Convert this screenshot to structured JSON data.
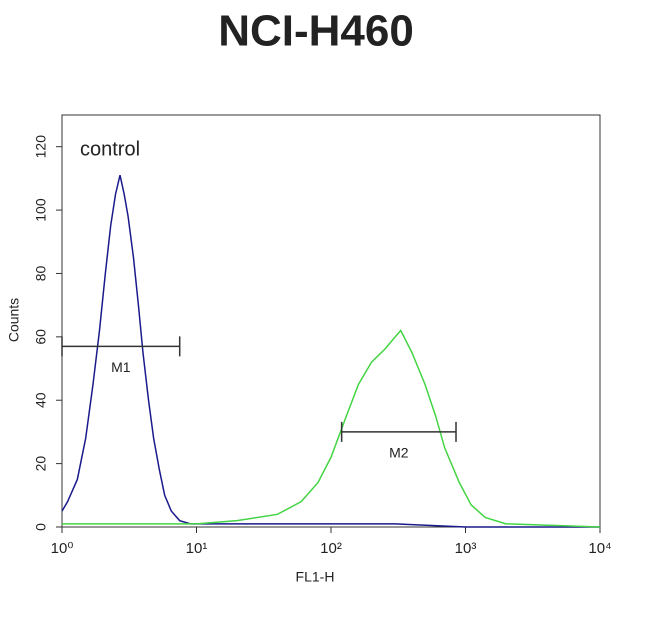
{
  "chart_data": {
    "type": "line",
    "title": "NCI-H460",
    "xlabel": "FL1-H",
    "ylabel": "Counts",
    "xscale": "log",
    "xlim": [
      1,
      10000
    ],
    "xticks": [
      {
        "value": 1,
        "label": "10⁰"
      },
      {
        "value": 10,
        "label": "10¹"
      },
      {
        "value": 100,
        "label": "10²"
      },
      {
        "value": 1000,
        "label": "10³"
      },
      {
        "value": 10000,
        "label": "10⁴"
      }
    ],
    "ylim": [
      0,
      130
    ],
    "yticks": [
      0,
      20,
      40,
      60,
      80,
      100,
      120
    ],
    "series": [
      {
        "name": "control",
        "color": "#1a1a8c",
        "x": [
          1.0,
          1.1,
          1.3,
          1.5,
          1.7,
          1.9,
          2.1,
          2.3,
          2.5,
          2.7,
          2.9,
          3.1,
          3.4,
          3.7,
          4.0,
          4.4,
          4.8,
          5.3,
          5.8,
          6.5,
          7.5,
          9,
          15,
          30,
          100,
          300,
          1000,
          10000
        ],
        "values": [
          5,
          8,
          15,
          28,
          45,
          62,
          80,
          95,
          105,
          111,
          105,
          98,
          85,
          70,
          55,
          40,
          28,
          18,
          10,
          5,
          2,
          1,
          1,
          1,
          1,
          1,
          0,
          0
        ]
      },
      {
        "name": null,
        "color": "#44d444",
        "x": [
          1,
          10,
          20,
          40,
          60,
          80,
          100,
          130,
          160,
          200,
          250,
          300,
          330,
          400,
          500,
          600,
          700,
          900,
          1100,
          1400,
          2000,
          10000
        ],
        "values": [
          1,
          1,
          2,
          4,
          8,
          14,
          22,
          35,
          45,
          52,
          56,
          60,
          62,
          55,
          45,
          35,
          25,
          14,
          7,
          3,
          1,
          0
        ]
      }
    ],
    "markers": [
      {
        "label": "M1",
        "x": [
          1,
          7.5
        ],
        "y": 57
      },
      {
        "label": "M2",
        "x": [
          120,
          850
        ],
        "y": 30
      }
    ]
  }
}
